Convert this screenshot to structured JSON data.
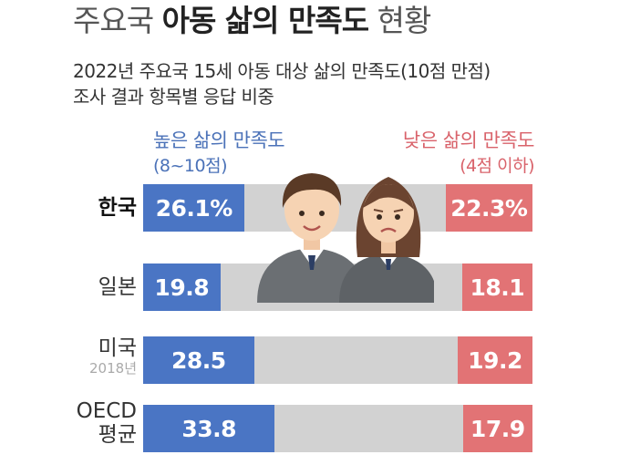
{
  "title": {
    "part1": "주요국",
    "part2": "아동 삶의 만족도",
    "part3": "현황"
  },
  "subtitle": {
    "line1": "2022년 주요국 15세 아동 대상 삶의 만족도(10점 만점)",
    "line2": "조사 결과 항목별 응답 비중"
  },
  "legend": {
    "high_label": "높은 삶의 만족도",
    "high_range": "(8~10점)",
    "low_label": "낮은 삶의 만족도",
    "low_range": "(4점 이하)"
  },
  "colors": {
    "high": "#4a75c4",
    "low": "#e27375",
    "track": "#d2d2d2"
  },
  "chart_data": {
    "type": "bar",
    "categories": [
      "한국",
      "일본",
      "미국",
      "OECD 평균"
    ],
    "category_notes": [
      "",
      "",
      "2018년",
      ""
    ],
    "series": [
      {
        "name": "높은 삶의 만족도 (8~10점)",
        "values": [
          26.1,
          19.8,
          28.5,
          33.8
        ],
        "labels": [
          "26.1%",
          "19.8",
          "28.5",
          "33.8"
        ]
      },
      {
        "name": "낮은 삶의 만족도 (4점 이하)",
        "values": [
          22.3,
          18.1,
          19.2,
          17.9
        ],
        "labels": [
          "22.3%",
          "18.1",
          "19.2",
          "17.9"
        ]
      }
    ],
    "unit": "%"
  }
}
